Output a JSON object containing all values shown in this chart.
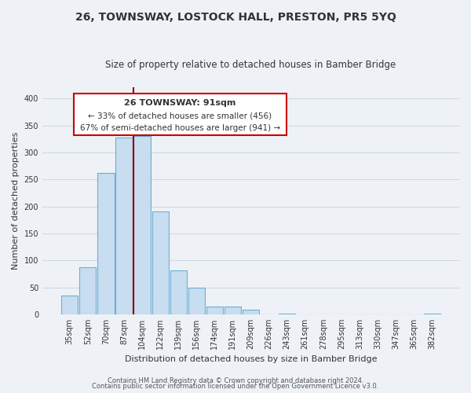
{
  "title": "26, TOWNSWAY, LOSTOCK HALL, PRESTON, PR5 5YQ",
  "subtitle": "Size of property relative to detached houses in Bamber Bridge",
  "xlabel": "Distribution of detached houses by size in Bamber Bridge",
  "ylabel": "Number of detached properties",
  "footer_line1": "Contains HM Land Registry data © Crown copyright and database right 2024.",
  "footer_line2": "Contains public sector information licensed under the Open Government Licence v3.0.",
  "bar_labels": [
    "35sqm",
    "52sqm",
    "70sqm",
    "87sqm",
    "104sqm",
    "122sqm",
    "139sqm",
    "156sqm",
    "174sqm",
    "191sqm",
    "209sqm",
    "226sqm",
    "243sqm",
    "261sqm",
    "278sqm",
    "295sqm",
    "313sqm",
    "330sqm",
    "347sqm",
    "365sqm",
    "382sqm"
  ],
  "bar_values": [
    35,
    87,
    262,
    328,
    330,
    190,
    82,
    50,
    14,
    15,
    9,
    0,
    2,
    0,
    0,
    0,
    0,
    0,
    0,
    0,
    1
  ],
  "bar_color": "#c8ddef",
  "bar_edge_color": "#6aafd6",
  "ylim": [
    0,
    420
  ],
  "yticks": [
    0,
    50,
    100,
    150,
    200,
    250,
    300,
    350,
    400
  ],
  "annotation_title": "26 TOWNSWAY: 91sqm",
  "annotation_line1": "← 33% of detached houses are smaller (456)",
  "annotation_line2": "67% of semi-detached houses are larger (941) →",
  "marker_bar_index": 3,
  "box_color": "#ffffff",
  "box_edge_color": "#cc0000",
  "marker_line_color": "#8b0000",
  "background_color": "#eef2f7",
  "grid_color": "#d0d8e4",
  "title_fontsize": 10,
  "subtitle_fontsize": 8.5,
  "xlabel_fontsize": 8,
  "ylabel_fontsize": 8,
  "tick_fontsize": 7,
  "footer_fontsize": 6
}
